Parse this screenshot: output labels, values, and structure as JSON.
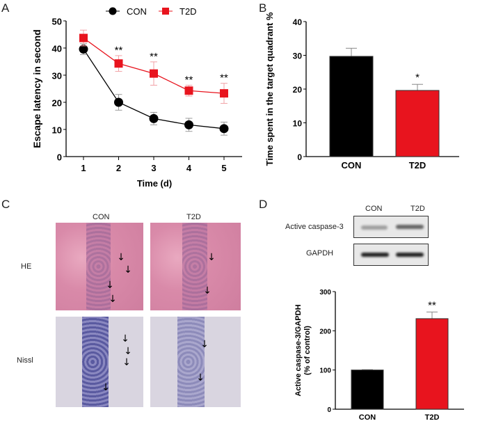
{
  "panels": {
    "a": "A",
    "b": "B",
    "c": "C",
    "d": "D"
  },
  "chart_data": [
    {
      "type": "line",
      "title": "",
      "xlabel": "Time (d)",
      "ylabel": "Escape latency in second",
      "x": [
        1,
        2,
        3,
        4,
        5
      ],
      "ylim": [
        0,
        50
      ],
      "yticks": [
        0,
        10,
        20,
        30,
        40,
        50
      ],
      "legend": "top",
      "series": [
        {
          "name": "CON",
          "color": "#000000",
          "values": [
            39.6,
            20.0,
            14.0,
            11.7,
            10.3
          ],
          "errors": [
            2.0,
            2.9,
            2.3,
            2.4,
            2.4
          ]
        },
        {
          "name": "T2D",
          "color": "#e8141e",
          "values": [
            43.7,
            34.3,
            30.6,
            24.3,
            23.3
          ],
          "errors": [
            2.9,
            2.9,
            4.3,
            2.0,
            3.7
          ]
        }
      ],
      "annotations": [
        {
          "x": 2,
          "text": "**"
        },
        {
          "x": 3,
          "text": "**"
        },
        {
          "x": 4,
          "text": "**"
        },
        {
          "x": 5,
          "text": "**"
        }
      ]
    },
    {
      "type": "bar",
      "title": "",
      "xlabel": "",
      "ylabel": "Time spent in the target quadrant %",
      "categories": [
        "CON",
        "T2D"
      ],
      "values": [
        29.7,
        19.6
      ],
      "errors": [
        2.4,
        1.8
      ],
      "colors": [
        "#000000",
        "#e8141e"
      ],
      "ylim": [
        0,
        40
      ],
      "yticks": [
        0,
        10,
        20,
        30,
        40
      ],
      "annotations": [
        {
          "category": "T2D",
          "text": "*"
        }
      ]
    },
    {
      "type": "bar",
      "title": "",
      "xlabel": "",
      "ylabel": "Active caspase-3/GAPDH\n(% of control)",
      "ylabel_lines": [
        "Active caspase-3/GAPDH",
        "(% of control)"
      ],
      "categories": [
        "CON",
        "T2D"
      ],
      "values": [
        100,
        231
      ],
      "errors": [
        1,
        17
      ],
      "colors": [
        "#000000",
        "#e8141e"
      ],
      "ylim": [
        0,
        300
      ],
      "yticks": [
        0,
        100,
        200,
        300
      ],
      "annotations": [
        {
          "category": "T2D",
          "text": "**"
        }
      ]
    }
  ],
  "histology": {
    "columns": [
      "CON",
      "T2D"
    ],
    "rows": [
      "HE",
      "Nissl"
    ]
  },
  "western": {
    "columns": [
      "CON",
      "T2D"
    ],
    "rows": [
      "Active caspase-3",
      "GAPDH"
    ]
  }
}
